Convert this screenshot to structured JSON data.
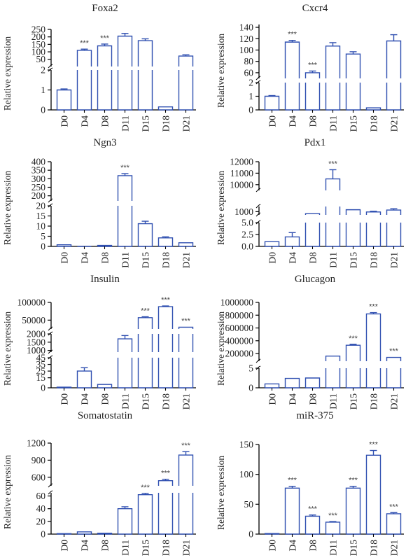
{
  "chart_data": [
    {
      "type": "bar",
      "title": "Foxa2",
      "ylabel": "Relative expression",
      "categories": [
        "D0",
        "D4",
        "D8",
        "D11",
        "D15",
        "D18",
        "D21"
      ],
      "values": [
        1.0,
        110,
        140,
        205,
        175,
        0.15,
        72
      ],
      "errors": [
        0.05,
        8,
        12,
        18,
        12,
        0.02,
        8
      ],
      "significance": [
        "",
        "***",
        "***",
        "",
        "",
        "",
        ""
      ],
      "segments": [
        {
          "ylim": [
            0,
            2
          ],
          "ticks": [
            0,
            1,
            2
          ]
        },
        {
          "ylim": [
            2,
            250
          ],
          "ticks": [
            50,
            100,
            150,
            200,
            250
          ]
        }
      ]
    },
    {
      "type": "bar",
      "title": "Cxcr4",
      "ylabel": "Relative expression",
      "categories": [
        "D0",
        "D4",
        "D8",
        "D11",
        "D15",
        "D18",
        "D21"
      ],
      "values": [
        1.0,
        114,
        60,
        107,
        93,
        0.15,
        116
      ],
      "errors": [
        0.05,
        3,
        3,
        6,
        4,
        0.02,
        11
      ],
      "significance": [
        "",
        "***",
        "***",
        "",
        "",
        "",
        ""
      ],
      "segments": [
        {
          "ylim": [
            0,
            2
          ],
          "ticks": [
            0,
            1,
            2
          ]
        },
        {
          "ylim": [
            50,
            145
          ],
          "ticks": [
            60,
            80,
            100,
            120,
            140
          ]
        }
      ]
    },
    {
      "type": "bar",
      "title": "Ngn3",
      "ylabel": "Relative expression",
      "categories": [
        "D0",
        "D4",
        "D8",
        "D11",
        "D15",
        "D18",
        "D21"
      ],
      "values": [
        0.8,
        0.1,
        0.5,
        318,
        11.2,
        4.2,
        1.8
      ],
      "errors": [
        0.1,
        0.05,
        0.1,
        12,
        1.2,
        0.5,
        0.2
      ],
      "significance": [
        "",
        "",
        "",
        "***",
        "",
        "",
        ""
      ],
      "segments": [
        {
          "ylim": [
            0,
            20
          ],
          "ticks": [
            0,
            5,
            10,
            15,
            20
          ]
        },
        {
          "ylim": [
            170,
            400
          ],
          "ticks": [
            200,
            250,
            300,
            350,
            400
          ]
        }
      ]
    },
    {
      "type": "bar",
      "title": "Pdx1",
      "ylabel": "Relative expression",
      "categories": [
        "D0",
        "D4",
        "D8",
        "D11",
        "D15",
        "D18",
        "D21"
      ],
      "values": [
        1.0,
        2.0,
        700,
        10500,
        1300,
        950,
        1250
      ],
      "errors": [
        0.1,
        0.9,
        20,
        800,
        40,
        120,
        200
      ],
      "significance": [
        "",
        "",
        "",
        "***",
        "",
        "",
        ""
      ],
      "segments": [
        {
          "ylim": [
            0,
            5
          ],
          "ticks": [
            0.0,
            2.5,
            5.0
          ]
        },
        {
          "ylim": [
            500,
            1800
          ],
          "ticks": [
            1000
          ]
        },
        {
          "ylim": [
            9500,
            12000
          ],
          "ticks": [
            10000,
            11000,
            12000
          ]
        }
      ]
    },
    {
      "type": "bar",
      "title": "Insulin",
      "ylabel": "Relative expression",
      "categories": [
        "D0",
        "D4",
        "D8",
        "D11",
        "D15",
        "D18",
        "D21"
      ],
      "values": [
        1.0,
        25,
        5,
        1700,
        57000,
        88000,
        30000
      ],
      "errors": [
        0.2,
        5,
        0.8,
        200,
        2500,
        2000,
        1200
      ],
      "significance": [
        "",
        "",
        "",
        "",
        "***",
        "***",
        "***"
      ],
      "segments": [
        {
          "ylim": [
            0,
            45
          ],
          "ticks": [
            0,
            15,
            25,
            35,
            45
          ]
        },
        {
          "ylim": [
            900,
            2000
          ],
          "ticks": [
            1000,
            1500,
            2000
          ]
        },
        {
          "ylim": [
            25000,
            100000
          ],
          "ticks": [
            50000,
            100000
          ]
        }
      ]
    },
    {
      "type": "bar",
      "title": "Glucagon",
      "ylabel": "Relative expression",
      "categories": [
        "D0",
        "D4",
        "D8",
        "D11",
        "D15",
        "D18",
        "D21"
      ],
      "values": [
        1.0,
        2.4,
        2.5,
        160000,
        330000,
        820000,
        140000
      ],
      "errors": [
        0.05,
        0.05,
        0.05,
        5000,
        15000,
        20000,
        8000
      ],
      "significance": [
        "",
        "",
        "",
        "",
        "***",
        "***",
        "***"
      ],
      "segments": [
        {
          "ylim": [
            0,
            5
          ],
          "ticks": [
            0,
            5
          ]
        },
        {
          "ylim": [
            80000,
            1000000
          ],
          "ticks": [
            200000,
            400000,
            600000,
            800000,
            1000000
          ]
        }
      ]
    },
    {
      "type": "bar",
      "title": "Somatostatin",
      "ylabel": "Relative expression",
      "categories": [
        "D0",
        "D4",
        "D8",
        "D11",
        "D15",
        "D18",
        "D21"
      ],
      "values": [
        0.8,
        3.5,
        1.5,
        40,
        62,
        540,
        990
      ],
      "errors": [
        0.1,
        0.4,
        0.3,
        3,
        2,
        25,
        60
      ],
      "significance": [
        "",
        "",
        "",
        "",
        "***",
        "***",
        "***"
      ],
      "segments": [
        {
          "ylim": [
            0,
            65
          ],
          "ticks": [
            0,
            20,
            40,
            60
          ]
        },
        {
          "ylim": [
            450,
            1200
          ],
          "ticks": [
            600,
            900,
            1200
          ]
        }
      ]
    },
    {
      "type": "bar",
      "title": "miR-375",
      "ylabel": "Relative expression",
      "categories": [
        "D0",
        "D4",
        "D8",
        "D11",
        "D15",
        "D18",
        "D21"
      ],
      "values": [
        1.0,
        77,
        30,
        20,
        77,
        132,
        34
      ],
      "errors": [
        0.2,
        3,
        2,
        1,
        3,
        8,
        2
      ],
      "significance": [
        "",
        "***",
        "***",
        "***",
        "***",
        "***",
        "***"
      ],
      "segments": [
        {
          "ylim": [
            0,
            150
          ],
          "ticks": [
            0,
            50,
            100,
            150
          ]
        }
      ]
    }
  ]
}
